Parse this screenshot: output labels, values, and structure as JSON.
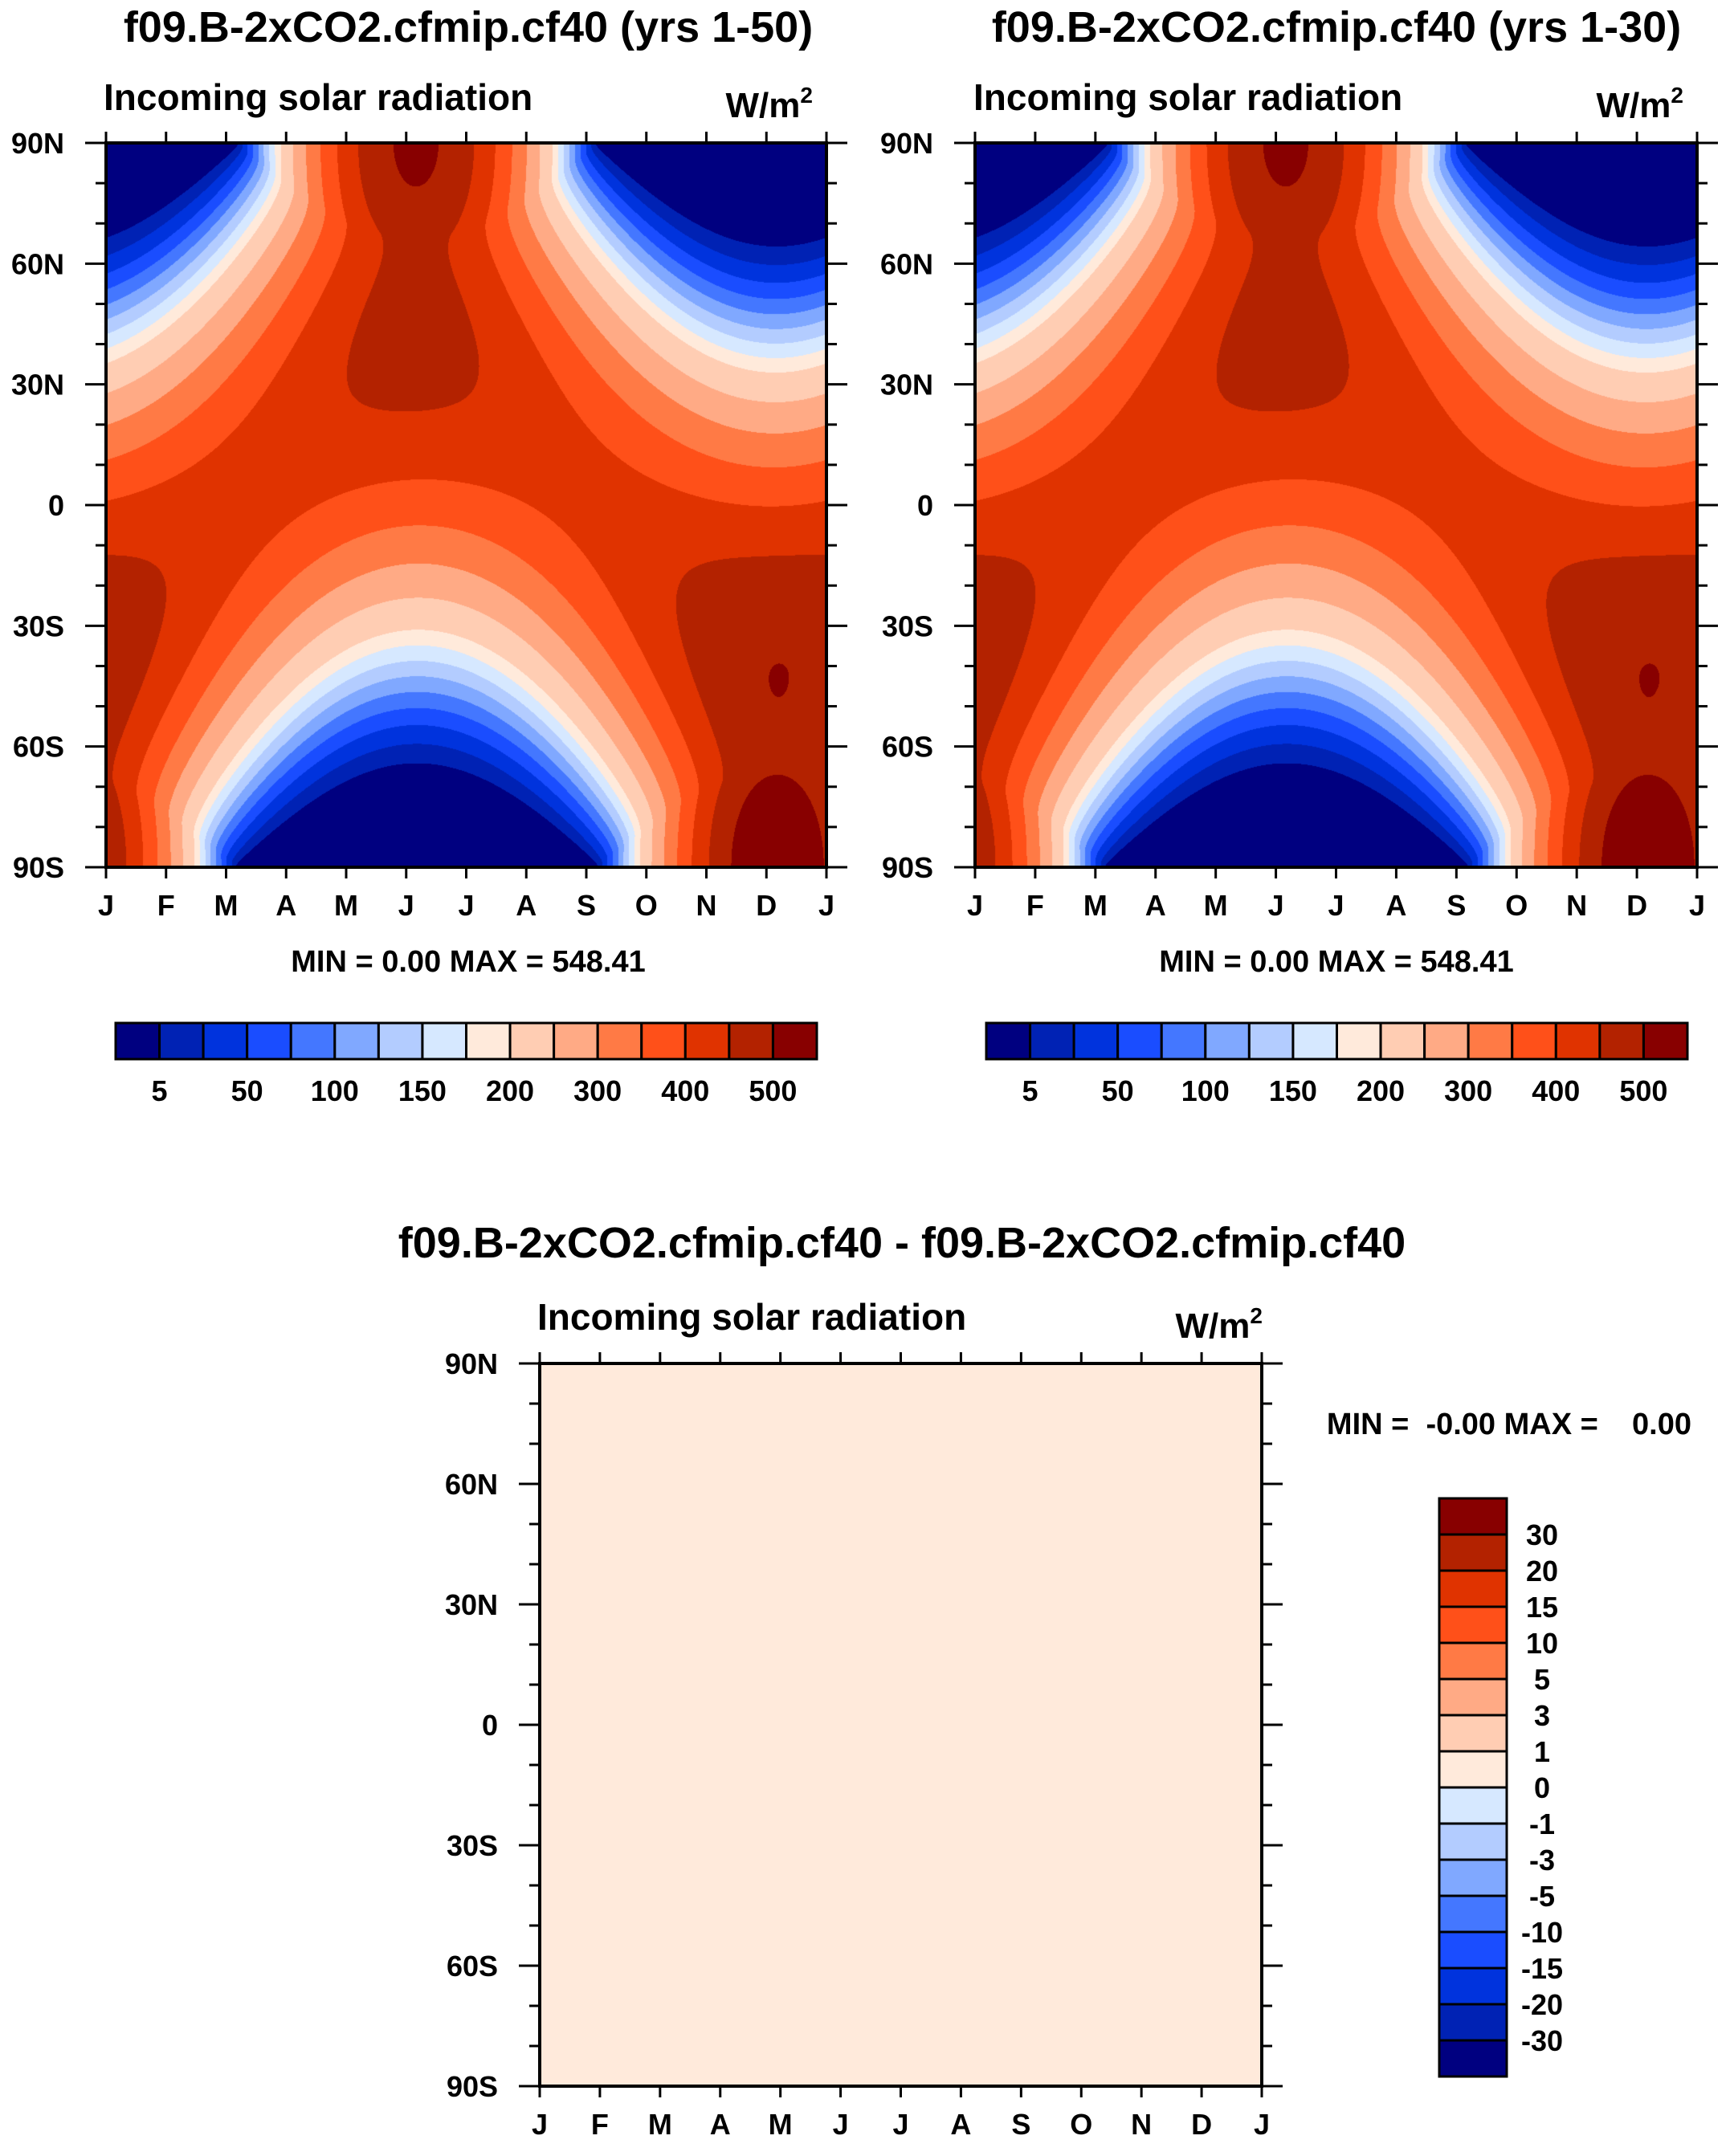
{
  "chart_data": [
    {
      "type": "heatmap",
      "title": "f09.B-2xCO2.cfmip.cf40 (yrs 1-50)",
      "subtitle": "Incoming solar radiation",
      "units_base": "W/m",
      "units_sup": "2",
      "xticks": [
        "J",
        "F",
        "M",
        "A",
        "M",
        "J",
        "J",
        "A",
        "S",
        "O",
        "N",
        "D",
        "J"
      ],
      "yticks": [
        "90N",
        "60N",
        "30N",
        "0",
        "30S",
        "60S",
        "90S"
      ],
      "ylim": [
        -90,
        90
      ],
      "min_max": "MIN =    0.00 MAX = 548.41",
      "min": 0.0,
      "max": 548.41,
      "levels": [
        5,
        25,
        50,
        75,
        100,
        125,
        150,
        175,
        200,
        250,
        300,
        350,
        400,
        450,
        500
      ],
      "colorbar_labels": [
        "5",
        "50",
        "100",
        "150",
        "200",
        "300",
        "400",
        "500"
      ],
      "field": "monthly zonal-mean top-of-atmosphere insolation vs latitude"
    },
    {
      "type": "heatmap",
      "title": "f09.B-2xCO2.cfmip.cf40 (yrs 1-30)",
      "subtitle": "Incoming solar radiation",
      "units_base": "W/m",
      "units_sup": "2",
      "xticks": [
        "J",
        "F",
        "M",
        "A",
        "M",
        "J",
        "J",
        "A",
        "S",
        "O",
        "N",
        "D",
        "J"
      ],
      "yticks": [
        "90N",
        "60N",
        "30N",
        "0",
        "30S",
        "60S",
        "90S"
      ],
      "ylim": [
        -90,
        90
      ],
      "min_max": "MIN =    0.00 MAX = 548.41",
      "min": 0.0,
      "max": 548.41,
      "levels": [
        5,
        25,
        50,
        75,
        100,
        125,
        150,
        175,
        200,
        250,
        300,
        350,
        400,
        450,
        500
      ],
      "colorbar_labels": [
        "5",
        "50",
        "100",
        "150",
        "200",
        "300",
        "400",
        "500"
      ],
      "field": "monthly zonal-mean top-of-atmosphere insolation vs latitude"
    },
    {
      "type": "heatmap",
      "title": "f09.B-2xCO2.cfmip.cf40 - f09.B-2xCO2.cfmip.cf40",
      "subtitle": "Incoming solar radiation",
      "units_base": "W/m",
      "units_sup": "2",
      "xticks": [
        "J",
        "F",
        "M",
        "A",
        "M",
        "J",
        "J",
        "A",
        "S",
        "O",
        "N",
        "D",
        "J"
      ],
      "yticks": [
        "90N",
        "60N",
        "30N",
        "0",
        "30S",
        "60S",
        "90S"
      ],
      "ylim": [
        -90,
        90
      ],
      "min_max": "MIN =  -0.00 MAX =    0.00",
      "min": -0.0,
      "max": 0.0,
      "levels": [
        -30,
        -20,
        -15,
        -10,
        -5,
        -3,
        -1,
        0,
        1,
        3,
        5,
        10,
        15,
        20,
        30
      ],
      "colorbar_labels": [
        "30",
        "20",
        "15",
        "10",
        "5",
        "3",
        "1",
        "0",
        "-1",
        "-3",
        "-5",
        "-10",
        "-15",
        "-20",
        "-30"
      ],
      "field": "difference = 0 everywhere"
    }
  ],
  "colors": {
    "scale16": [
      "#000080",
      "#0022b4",
      "#0033dd",
      "#1a4dff",
      "#4477ff",
      "#80a8ff",
      "#b3ccff",
      "#d6e8ff",
      "#ffeadb",
      "#ffcdb3",
      "#ffaa85",
      "#ff7a45",
      "#ff5019",
      "#e03300",
      "#b32200",
      "#880000"
    ]
  }
}
